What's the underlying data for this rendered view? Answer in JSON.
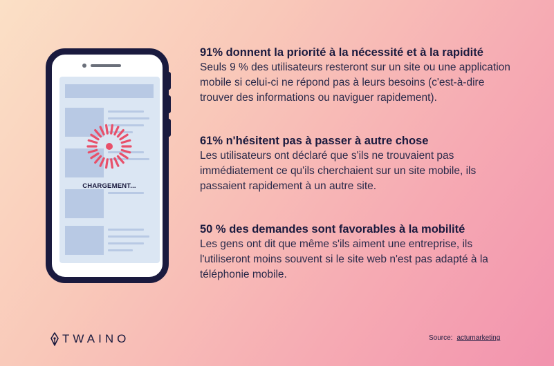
{
  "phone": {
    "loading_label": "CHARGEMENT..."
  },
  "sections": [
    {
      "heading": "91% donnent la priorité à la nécessité et à la rapidité",
      "lines": [
        "Seuls 9 % des utilisateurs resteront sur un site ou une application",
        "mobile si celui-ci ne répond pas à leurs besoins (c'est-à-dire",
        "trouver des informations ou naviguer rapidement)."
      ]
    },
    {
      "heading": "61% n'hésitent pas à passer à autre chose",
      "lines": [
        "Les utilisateurs ont déclaré que s'ils ne trouvaient pas",
        "immédiatement ce qu'ils cherchaient sur un site mobile, ils",
        "passaient rapidement à un autre site."
      ]
    },
    {
      "heading": "50 % des demandes sont favorables à la mobilité",
      "lines": [
        "Les gens ont dit que même s'ils aiment une entreprise, ils",
        "l'utiliseront moins souvent si le site web n'est pas adapté à la",
        "téléphonie mobile."
      ]
    }
  ],
  "footer": {
    "logo_text": "TWAINO",
    "logo_icon": "pen-nib-icon",
    "source_label": "Source:",
    "source_link": "actumarketing"
  },
  "colors": {
    "navy": "#1a1a3e",
    "spinner": "#e8506a",
    "screen": "#dbe6f3",
    "placeholder": "#b8c9e4"
  }
}
